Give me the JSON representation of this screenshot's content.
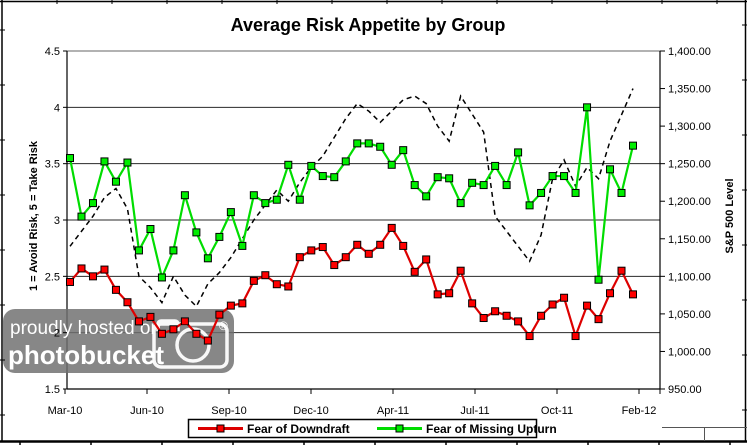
{
  "title": "Average Risk Appetite by Group",
  "left_axis": {
    "title": "1 = Avoid Risk, 5 = Take Risk",
    "tick_labels": [
      "4.5",
      "4",
      "3.5",
      "3",
      "2.5",
      "2",
      "1.5"
    ],
    "tick_values": [
      4.5,
      4,
      3.5,
      3,
      2.5,
      2,
      1.5
    ],
    "min": 1.5,
    "max": 4.5
  },
  "right_axis": {
    "title": "S&P 500 Level",
    "tick_labels": [
      "1,400.00",
      "1,350.00",
      "1,300.00",
      "1,250.00",
      "1,200.00",
      "1,150.00",
      "1,100.00",
      "1,050.00",
      "1,000.00",
      "950.00"
    ],
    "tick_values": [
      1400,
      1350,
      1300,
      1250,
      1200,
      1150,
      1100,
      1050,
      1000,
      950
    ],
    "min": 950,
    "max": 1400
  },
  "x_axis": {
    "tick_labels": [
      "Mar-10",
      "Jun-10",
      "Sep-10",
      "Dec-10",
      "Apr-11",
      "Jul-11",
      "Oct-11",
      "Feb-12"
    ]
  },
  "legend": {
    "items": [
      {
        "label": "Fear of Downdraft",
        "color": "#dd0000",
        "marker_fill": "#ff0000"
      },
      {
        "label": "Fear of Missing Upturn",
        "color": "#00dd00",
        "marker_fill": "#00ee00"
      }
    ]
  },
  "watermark": {
    "line1": "proudly hosted on",
    "line2": "photobucket",
    "registered": "®",
    "camera_icon": "camera-icon"
  },
  "colors": {
    "downdraft_line": "#dd0000",
    "downdraft_marker": "#ff0000",
    "upturn_line": "#00dd00",
    "upturn_marker": "#00ee00",
    "sp500_line": "#000000",
    "gridline": "#2a2a2a",
    "plot_top_border": "#999999",
    "watermark_bg": "#707070",
    "watermark_text": "#ffffff"
  },
  "chart_data": {
    "type": "line",
    "x_labels_shown": [
      "Mar-10",
      "Jun-10",
      "Sep-10",
      "Dec-10",
      "Apr-11",
      "Jul-11",
      "Oct-11",
      "Feb-12"
    ],
    "n_points": 50,
    "left_ylim": [
      1.5,
      4.5
    ],
    "right_ylim": [
      950,
      1400
    ],
    "grid": "horizontal",
    "legend_position": "bottom",
    "series": [
      {
        "name": "Fear of Downdraft",
        "axis": "left",
        "style": "solid",
        "marker": "square",
        "values": [
          2.45,
          2.57,
          2.5,
          2.56,
          2.38,
          2.27,
          2.1,
          2.14,
          1.99,
          2.03,
          2.1,
          1.99,
          1.93,
          2.16,
          2.24,
          2.26,
          2.46,
          2.51,
          2.43,
          2.41,
          2.67,
          2.73,
          2.76,
          2.6,
          2.67,
          2.78,
          2.7,
          2.78,
          2.93,
          2.77,
          2.54,
          2.65,
          2.34,
          2.35,
          2.55,
          2.26,
          2.13,
          2.19,
          2.15,
          2.1,
          1.97,
          2.15,
          2.25,
          2.31,
          1.97,
          2.24,
          2.12,
          2.35,
          2.55,
          2.34
        ]
      },
      {
        "name": "Fear of Missing Upturn",
        "axis": "left",
        "style": "solid",
        "marker": "square",
        "values": [
          3.55,
          3.03,
          3.15,
          3.52,
          3.34,
          3.51,
          2.73,
          2.92,
          2.49,
          2.73,
          3.22,
          2.89,
          2.66,
          2.85,
          3.07,
          2.77,
          3.22,
          3.15,
          3.18,
          3.49,
          3.18,
          3.48,
          3.39,
          3.38,
          3.52,
          3.68,
          3.68,
          3.65,
          3.49,
          3.62,
          3.31,
          3.21,
          3.38,
          3.37,
          3.15,
          3.33,
          3.31,
          3.48,
          3.31,
          3.6,
          3.13,
          3.24,
          3.39,
          3.39,
          3.24,
          4.0,
          2.47,
          3.45,
          3.24,
          3.66
        ]
      },
      {
        "name": "S&P 500 Level",
        "axis": "right",
        "style": "dashed",
        "marker": "none",
        "values": [
          1140,
          1160,
          1180,
          1205,
          1217,
          1190,
          1100,
          1085,
          1065,
          1100,
          1075,
          1060,
          1090,
          1105,
          1125,
          1150,
          1175,
          1195,
          1215,
          1200,
          1225,
          1245,
          1260,
          1285,
          1310,
          1330,
          1320,
          1305,
          1320,
          1335,
          1340,
          1330,
          1300,
          1280,
          1340,
          1316,
          1292,
          1180,
          1160,
          1140,
          1120,
          1155,
          1230,
          1255,
          1220,
          1245,
          1230,
          1280,
          1315,
          1350
        ]
      }
    ]
  }
}
